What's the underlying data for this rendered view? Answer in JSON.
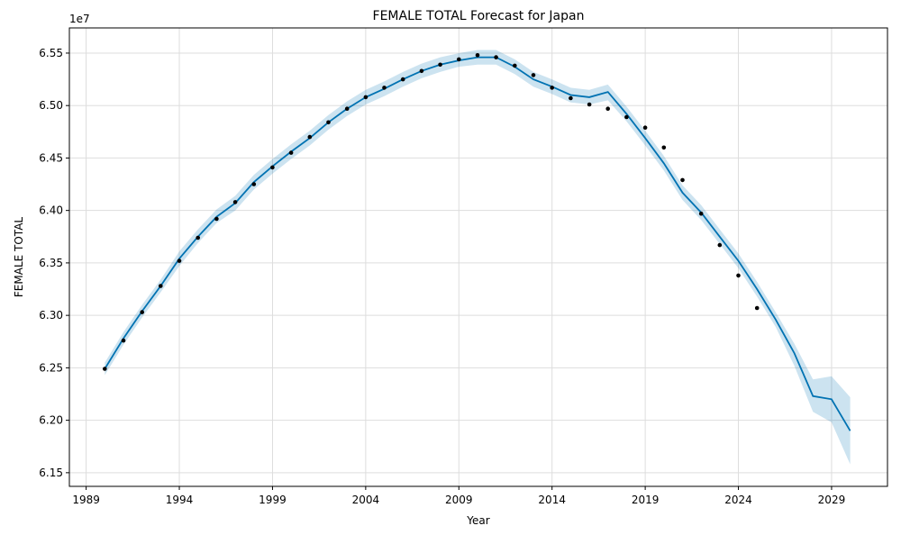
{
  "chart_data": {
    "type": "line",
    "title": "FEMALE TOTAL Forecast for Japan",
    "xlabel": "Year",
    "ylabel": "FEMALE TOTAL",
    "y_offset_label": "1e7",
    "xlim": [
      1988.1,
      2032.0
    ],
    "ylim": [
      6.137,
      6.574
    ],
    "grid": true,
    "x_ticks": [
      1989,
      1994,
      1999,
      2004,
      2009,
      2014,
      2019,
      2024,
      2029
    ],
    "y_ticks": [
      6.15,
      6.2,
      6.25,
      6.3,
      6.35,
      6.4,
      6.45,
      6.5,
      6.55
    ],
    "colors": {
      "forecast_line": "#0072b2",
      "band_fill": "#0072b2",
      "observed_points": "#000000",
      "grid": "#dddddd"
    },
    "series": [
      {
        "role": "forecast",
        "x": [
          1990,
          1991,
          1992,
          1993,
          1994,
          1995,
          1996,
          1997,
          1998,
          1999,
          2000,
          2001,
          2002,
          2003,
          2004,
          2005,
          2006,
          2007,
          2008,
          2009,
          2010,
          2011,
          2012,
          2013,
          2014,
          2015,
          2016,
          2017,
          2018,
          2019,
          2020,
          2021,
          2022,
          2023,
          2024,
          2025,
          2026,
          2027,
          2028,
          2029,
          2030
        ],
        "yhat": [
          6.249,
          6.278,
          6.304,
          6.328,
          6.354,
          6.375,
          6.394,
          6.407,
          6.427,
          6.442,
          6.456,
          6.469,
          6.484,
          6.497,
          6.508,
          6.516,
          6.525,
          6.533,
          6.539,
          6.543,
          6.546,
          6.546,
          6.537,
          6.525,
          6.518,
          6.51,
          6.508,
          6.513,
          6.492,
          6.469,
          6.445,
          6.417,
          6.398,
          6.375,
          6.352,
          6.325,
          6.296,
          6.264,
          6.223,
          6.22,
          6.19
        ],
        "lower": [
          6.243,
          6.272,
          6.298,
          6.322,
          6.347,
          6.369,
          6.388,
          6.4,
          6.42,
          6.435,
          6.449,
          6.462,
          6.477,
          6.49,
          6.501,
          6.509,
          6.518,
          6.526,
          6.532,
          6.537,
          6.539,
          6.539,
          6.53,
          6.518,
          6.511,
          6.503,
          6.501,
          6.505,
          6.485,
          6.462,
          6.438,
          6.41,
          6.391,
          6.368,
          6.345,
          6.318,
          6.289,
          6.252,
          6.208,
          6.198,
          6.158
        ],
        "upper": [
          6.255,
          6.284,
          6.31,
          6.334,
          6.361,
          6.382,
          6.401,
          6.414,
          6.434,
          6.449,
          6.463,
          6.476,
          6.491,
          6.504,
          6.515,
          6.523,
          6.532,
          6.54,
          6.546,
          6.55,
          6.553,
          6.553,
          6.544,
          6.532,
          6.525,
          6.517,
          6.515,
          6.52,
          6.499,
          6.476,
          6.452,
          6.424,
          6.405,
          6.382,
          6.359,
          6.332,
          6.303,
          6.273,
          6.239,
          6.242,
          6.222
        ]
      },
      {
        "role": "observed",
        "x": [
          1990,
          1991,
          1992,
          1993,
          1994,
          1995,
          1996,
          1997,
          1998,
          1999,
          2000,
          2001,
          2002,
          2003,
          2004,
          2005,
          2006,
          2007,
          2008,
          2009,
          2010,
          2011,
          2012,
          2013,
          2014,
          2015,
          2016,
          2017,
          2018,
          2019,
          2020,
          2021,
          2022,
          2023,
          2024,
          2025
        ],
        "y": [
          6.249,
          6.276,
          6.303,
          6.328,
          6.352,
          6.374,
          6.392,
          6.408,
          6.425,
          6.441,
          6.455,
          6.47,
          6.484,
          6.497,
          6.508,
          6.517,
          6.525,
          6.533,
          6.539,
          6.544,
          6.548,
          6.546,
          6.538,
          6.529,
          6.517,
          6.507,
          6.501,
          6.497,
          6.489,
          6.479,
          6.46,
          6.429,
          6.397,
          6.367,
          6.338,
          6.307
        ]
      }
    ]
  }
}
